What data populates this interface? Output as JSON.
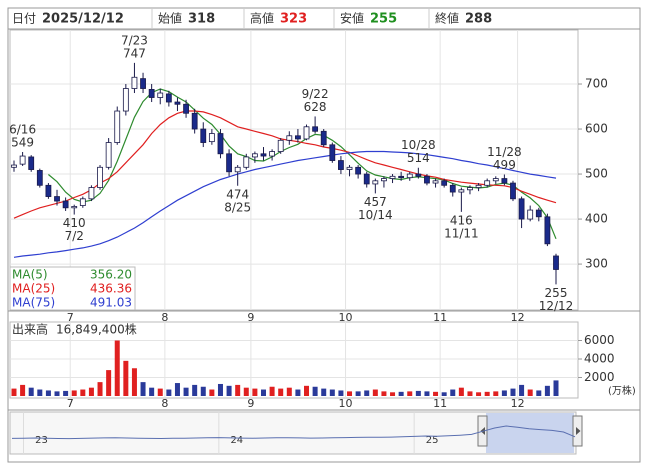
{
  "header": {
    "items": [
      {
        "label": "日付",
        "value": "2025/12/12",
        "color": "#333333"
      },
      {
        "label": "始値",
        "value": 318,
        "color": "#333333"
      },
      {
        "label": "高値",
        "value": 323,
        "color": "#e02020"
      },
      {
        "label": "安値",
        "value": 255,
        "color": "#1f8f1f"
      },
      {
        "label": "終値",
        "value": 288,
        "color": "#333333"
      }
    ]
  },
  "chart_data": [
    {
      "type": "candlestick",
      "categories": [
        null,
        null,
        null,
        null,
        null,
        null,
        null,
        "7",
        null,
        null,
        null,
        null,
        null,
        null,
        null,
        null,
        null,
        null,
        "8",
        null,
        null,
        null,
        null,
        null,
        null,
        null,
        null,
        null,
        "9",
        null,
        null,
        null,
        null,
        null,
        null,
        null,
        null,
        null,
        null,
        "10",
        null,
        null,
        null,
        null,
        null,
        null,
        null,
        null,
        null,
        null,
        "11",
        null,
        null,
        null,
        null,
        null,
        null,
        null,
        null,
        "12",
        null,
        null,
        null,
        null
      ],
      "open": [
        515,
        522,
        538,
        508,
        475,
        450,
        440,
        425,
        430,
        445,
        470,
        515,
        570,
        640,
        690,
        712,
        688,
        670,
        678,
        660,
        655,
        635,
        600,
        572,
        590,
        545,
        505,
        515,
        538,
        545,
        540,
        550,
        575,
        585,
        578,
        605,
        595,
        565,
        530,
        510,
        515,
        500,
        478,
        485,
        490,
        495,
        492,
        500,
        495,
        480,
        485,
        475,
        460,
        465,
        470,
        475,
        485,
        490,
        480,
        445,
        400,
        420,
        405,
        318
      ],
      "high": [
        530,
        549,
        542,
        512,
        480,
        465,
        448,
        432,
        450,
        475,
        520,
        580,
        650,
        700,
        747,
        725,
        700,
        690,
        685,
        670,
        665,
        645,
        615,
        600,
        600,
        555,
        520,
        545,
        550,
        560,
        555,
        580,
        595,
        600,
        610,
        628,
        600,
        570,
        540,
        520,
        520,
        505,
        490,
        495,
        500,
        505,
        505,
        514,
        500,
        490,
        490,
        480,
        470,
        475,
        480,
        490,
        495,
        499,
        485,
        450,
        430,
        425,
        412,
        323
      ],
      "low": [
        505,
        518,
        505,
        470,
        445,
        430,
        418,
        410,
        425,
        440,
        465,
        510,
        565,
        630,
        680,
        680,
        660,
        655,
        650,
        640,
        625,
        590,
        560,
        565,
        535,
        495,
        474,
        510,
        525,
        530,
        530,
        545,
        565,
        570,
        575,
        590,
        560,
        525,
        500,
        495,
        490,
        470,
        457,
        470,
        480,
        485,
        485,
        490,
        475,
        470,
        470,
        450,
        416,
        455,
        462,
        470,
        478,
        475,
        440,
        380,
        395,
        395,
        340,
        255
      ],
      "close": [
        520,
        540,
        510,
        475,
        450,
        440,
        425,
        428,
        445,
        470,
        515,
        570,
        640,
        690,
        715,
        690,
        670,
        680,
        660,
        655,
        635,
        600,
        570,
        590,
        545,
        505,
        515,
        538,
        545,
        540,
        550,
        575,
        585,
        578,
        605,
        595,
        565,
        530,
        510,
        515,
        500,
        478,
        485,
        490,
        495,
        492,
        500,
        495,
        480,
        485,
        475,
        460,
        465,
        470,
        475,
        485,
        490,
        480,
        445,
        400,
        420,
        405,
        345,
        288
      ],
      "up_color": "#ffffff",
      "down_color": "#1a2a8a",
      "outline_color": "#1a1a4a",
      "series": [
        {
          "name": "MA(5)",
          "color": "#2e8b2e",
          "legend_value": "356.20",
          "values": [
            null,
            null,
            null,
            null,
            499,
            483,
            460,
            444,
            438,
            442,
            457,
            486,
            528,
            577,
            626,
            661,
            681,
            689,
            683,
            671,
            660,
            642,
            624,
            610,
            588,
            562,
            545,
            539,
            530,
            529,
            538,
            550,
            559,
            566,
            579,
            588,
            586,
            575,
            561,
            543,
            524,
            507,
            498,
            494,
            490,
            488,
            492,
            494,
            492,
            490,
            487,
            479,
            473,
            471,
            469,
            471,
            477,
            480,
            475,
            460,
            447,
            430,
            403,
            356.2
          ]
        },
        {
          "name": "MA(25)",
          "color": "#e02020",
          "legend_value": "436.36",
          "values": [
            402,
            410,
            418,
            425,
            430,
            435,
            440,
            448,
            455,
            465,
            480,
            490,
            505,
            525,
            545,
            565,
            590,
            610,
            625,
            635,
            640,
            640,
            638,
            632,
            625,
            615,
            605,
            600,
            595,
            590,
            585,
            578,
            575,
            572,
            568,
            565,
            560,
            557,
            553,
            548,
            540,
            532,
            525,
            520,
            515,
            510,
            505,
            500,
            496,
            493,
            488,
            485,
            482,
            480,
            478,
            476,
            475,
            474,
            470,
            462,
            455,
            448,
            442,
            436.36
          ]
        },
        {
          "name": "MA(75)",
          "color": "#2f3fd0",
          "legend_value": "491.03",
          "values": [
            315,
            318,
            320,
            322,
            325,
            327,
            330,
            333,
            336,
            340,
            345,
            352,
            360,
            370,
            380,
            392,
            405,
            418,
            430,
            442,
            452,
            462,
            472,
            480,
            488,
            494,
            500,
            505,
            510,
            514,
            518,
            522,
            526,
            530,
            533,
            536,
            539,
            542,
            545,
            547,
            549,
            550,
            550,
            550,
            549,
            548,
            547,
            545,
            543,
            540,
            537,
            534,
            530,
            527,
            523,
            520,
            516,
            512,
            508,
            504,
            500,
            497,
            494,
            491.03
          ]
        }
      ],
      "annotations": [
        {
          "date": "6/16",
          "value": 549
        },
        {
          "date": "7/2",
          "value": 410
        },
        {
          "date": "7/23",
          "value": 747
        },
        {
          "date": "8/25",
          "value": 474
        },
        {
          "date": "9/22",
          "value": 628
        },
        {
          "date": "10/14",
          "value": 457
        },
        {
          "date": "10/28",
          "value": 514
        },
        {
          "date": "11/11",
          "value": 416
        },
        {
          "date": "11/28",
          "value": 499
        },
        {
          "date": "12/12",
          "value": 255
        }
      ],
      "ylim": [
        198,
        820
      ],
      "yticks": [
        300,
        400,
        500,
        600,
        700
      ],
      "grid": true
    },
    {
      "type": "bar",
      "title": "出来高",
      "latest": "16,849,400株",
      "unit": "(万株)",
      "categories": [
        null,
        null,
        null,
        null,
        null,
        null,
        null,
        "7",
        null,
        null,
        null,
        null,
        null,
        null,
        null,
        null,
        null,
        null,
        "8",
        null,
        null,
        null,
        null,
        null,
        null,
        null,
        null,
        null,
        "9",
        null,
        null,
        null,
        null,
        null,
        null,
        null,
        null,
        null,
        null,
        "10",
        null,
        null,
        null,
        null,
        null,
        null,
        null,
        null,
        null,
        null,
        "11",
        null,
        null,
        null,
        null,
        null,
        null,
        null,
        null,
        "12",
        null,
        null,
        null,
        null
      ],
      "values": [
        800,
        1200,
        900,
        700,
        600,
        500,
        550,
        600,
        700,
        900,
        1500,
        2800,
        6000,
        3800,
        3000,
        1500,
        900,
        800,
        700,
        1400,
        900,
        1200,
        1000,
        700,
        1300,
        1100,
        1200,
        900,
        800,
        700,
        1000,
        800,
        900,
        700,
        1100,
        1000,
        800,
        700,
        600,
        500,
        500,
        600,
        700,
        500,
        400,
        450,
        500,
        550,
        500,
        450,
        400,
        700,
        900,
        500,
        400,
        450,
        500,
        600,
        800,
        1200,
        700,
        600,
        1100,
        1684.94
      ],
      "up_color": "#e02020",
      "down_color": "#2a3a9a",
      "ylim": [
        0,
        8000
      ],
      "yticks": [
        2000,
        4000,
        6000
      ],
      "grid": true
    },
    {
      "type": "area",
      "color": "#5a6fb0",
      "categories": [
        null,
        "23",
        null,
        null,
        null,
        null,
        null,
        null,
        null,
        null,
        null,
        null,
        null,
        null,
        null,
        null,
        null,
        null,
        "24",
        null,
        null,
        null,
        null,
        null,
        null,
        null,
        null,
        null,
        null,
        null,
        null,
        null,
        null,
        null,
        null,
        "25",
        null,
        null,
        null,
        null,
        null,
        null,
        null,
        null,
        null,
        null,
        null,
        null,
        null,
        null
      ],
      "values": [
        340,
        345,
        350,
        342,
        338,
        335,
        340,
        348,
        352,
        355,
        350,
        345,
        340,
        338,
        342,
        346,
        350,
        355,
        360,
        352,
        348,
        345,
        350,
        355,
        358,
        352,
        348,
        350,
        355,
        360,
        365,
        370,
        368,
        372,
        380,
        390,
        400,
        395,
        405,
        420,
        440,
        520,
        600,
        650,
        620,
        580,
        560,
        540,
        500,
        380
      ],
      "ylim": [
        0,
        1000
      ]
    }
  ]
}
